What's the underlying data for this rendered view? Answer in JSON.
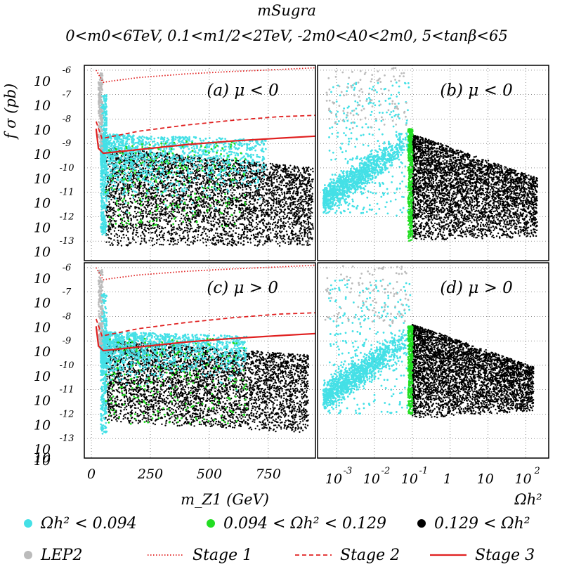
{
  "chart_data": {
    "type": "scatter",
    "title": "mSugra",
    "subtitle": "0<m0<6TeV, 0.1<m1/2<2TeV, -2m0<A0<2m0, 5<tanβ<65",
    "ylabel": "f σ (pb)",
    "xlabel_left": "m_Z1 (GeV)",
    "xlabel_right": "Ωh²",
    "y_ticks": [
      {
        "base": "10",
        "exp": "-6"
      },
      {
        "base": "10",
        "exp": "-7"
      },
      {
        "base": "10",
        "exp": "-8"
      },
      {
        "base": "10",
        "exp": "-9"
      },
      {
        "base": "10",
        "exp": "-10"
      },
      {
        "base": "10",
        "exp": "-11"
      },
      {
        "base": "10",
        "exp": "-12"
      },
      {
        "base": "10",
        "exp": "-13"
      }
    ],
    "y_axis_extra_label": "10",
    "ylim_log10": [
      -13.8,
      -5.8
    ],
    "x_left_ticks": [
      "0",
      "250",
      "500",
      "750"
    ],
    "x_left_tick_values": [
      0,
      250,
      500,
      750
    ],
    "xlim_left": [
      -30,
      950
    ],
    "x_right_ticks": [
      {
        "base": "10",
        "exp": "-3"
      },
      {
        "base": "10",
        "exp": "-2"
      },
      {
        "base": "10",
        "exp": "-1"
      },
      {
        "base": "1",
        "exp": ""
      },
      {
        "base": "10",
        "exp": ""
      },
      {
        "base": "10",
        "exp": "2"
      }
    ],
    "x_right_tick_values": [
      -3,
      -2,
      -1,
      0,
      1,
      2
    ],
    "xlim_right_log10": [
      -3.5,
      2.6
    ],
    "panels": [
      {
        "id": "a",
        "label": "(a)  μ < 0",
        "x_axis": "mass",
        "mu": "negative"
      },
      {
        "id": "b",
        "label": "(b)  μ < 0",
        "x_axis": "omega",
        "mu": "negative"
      },
      {
        "id": "c",
        "label": "(c)  μ > 0",
        "x_axis": "mass",
        "mu": "positive"
      },
      {
        "id": "d",
        "label": "(d)  μ > 0",
        "x_axis": "omega",
        "mu": "positive"
      }
    ],
    "series": [
      {
        "name": "Ωh² < 0.094",
        "kind": "points",
        "color": "#44e0e6"
      },
      {
        "name": "0.094 < Ωh² < 0.129",
        "kind": "points",
        "color": "#22dd22"
      },
      {
        "name": "0.129 < Ωh²",
        "kind": "points",
        "color": "#000000"
      },
      {
        "name": "LEP2",
        "kind": "points",
        "color": "#bbbbbb"
      },
      {
        "name": "Stage 1",
        "kind": "line",
        "style": "dotted",
        "color": "#e02020",
        "x": [
          20,
          50,
          80,
          200,
          400,
          600,
          800,
          950
        ],
        "log10_y": [
          -6.0,
          -6.5,
          -6.45,
          -6.3,
          -6.15,
          -6.05,
          -5.97,
          -5.9
        ]
      },
      {
        "name": "Stage 2",
        "kind": "line",
        "style": "dashed",
        "color": "#e02020",
        "x": [
          20,
          45,
          70,
          200,
          400,
          600,
          800,
          950
        ],
        "log10_y": [
          -8.1,
          -8.8,
          -8.75,
          -8.5,
          -8.25,
          -8.05,
          -7.9,
          -7.85
        ]
      },
      {
        "name": "Stage 3",
        "kind": "line",
        "style": "solid",
        "color": "#e02020",
        "x": [
          20,
          30,
          50,
          100,
          200,
          400,
          600,
          800,
          950
        ],
        "log10_y": [
          -8.4,
          -9.2,
          -9.4,
          -9.35,
          -9.25,
          -9.05,
          -8.9,
          -8.78,
          -8.7
        ]
      }
    ],
    "legend_position": "bottom",
    "grid": true
  }
}
